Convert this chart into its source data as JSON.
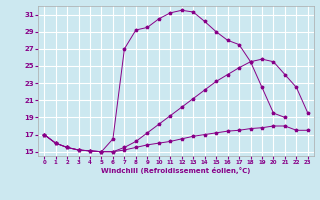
{
  "xlabel": "Windchill (Refroidissement éolien,°C)",
  "bg_color": "#cce8f0",
  "grid_color": "#ffffff",
  "line_color": "#880088",
  "xlim": [
    -0.5,
    23.5
  ],
  "ylim": [
    14.5,
    32
  ],
  "yticks": [
    15,
    17,
    19,
    21,
    23,
    25,
    27,
    29,
    31
  ],
  "xticks": [
    0,
    1,
    2,
    3,
    4,
    5,
    6,
    7,
    8,
    9,
    10,
    11,
    12,
    13,
    14,
    15,
    16,
    17,
    18,
    19,
    20,
    21,
    22,
    23
  ],
  "curve1_x": [
    0,
    1,
    2,
    3,
    4,
    5,
    6,
    7,
    8,
    9,
    10,
    11,
    12,
    13,
    14,
    15,
    16,
    17,
    18,
    19,
    20,
    21
  ],
  "curve1_y": [
    17.0,
    16.0,
    15.5,
    15.2,
    15.1,
    15.0,
    16.5,
    27.0,
    29.2,
    29.5,
    30.5,
    31.2,
    31.5,
    31.3,
    30.2,
    29.0,
    28.0,
    27.5,
    25.5,
    22.5,
    19.5,
    19.0
  ],
  "curve2_x": [
    0,
    1,
    2,
    3,
    4,
    5,
    6,
    7,
    8,
    9,
    10,
    11,
    12,
    13,
    14,
    15,
    16,
    17,
    18,
    19,
    20,
    21,
    22,
    23
  ],
  "curve2_y": [
    17.0,
    16.0,
    15.5,
    15.2,
    15.1,
    15.0,
    15.0,
    15.5,
    16.2,
    17.2,
    18.2,
    19.2,
    20.2,
    21.2,
    22.2,
    23.2,
    24.0,
    24.8,
    25.5,
    25.8,
    25.5,
    24.0,
    22.5,
    19.5
  ],
  "curve3_x": [
    0,
    1,
    2,
    3,
    4,
    5,
    6,
    7,
    8,
    9,
    10,
    11,
    12,
    13,
    14,
    15,
    16,
    17,
    18,
    19,
    20,
    21,
    22,
    23
  ],
  "curve3_y": [
    17.0,
    16.0,
    15.5,
    15.2,
    15.1,
    15.0,
    15.0,
    15.2,
    15.5,
    15.8,
    16.0,
    16.2,
    16.5,
    16.8,
    17.0,
    17.2,
    17.4,
    17.5,
    17.7,
    17.8,
    18.0,
    18.0,
    17.5,
    17.5
  ]
}
